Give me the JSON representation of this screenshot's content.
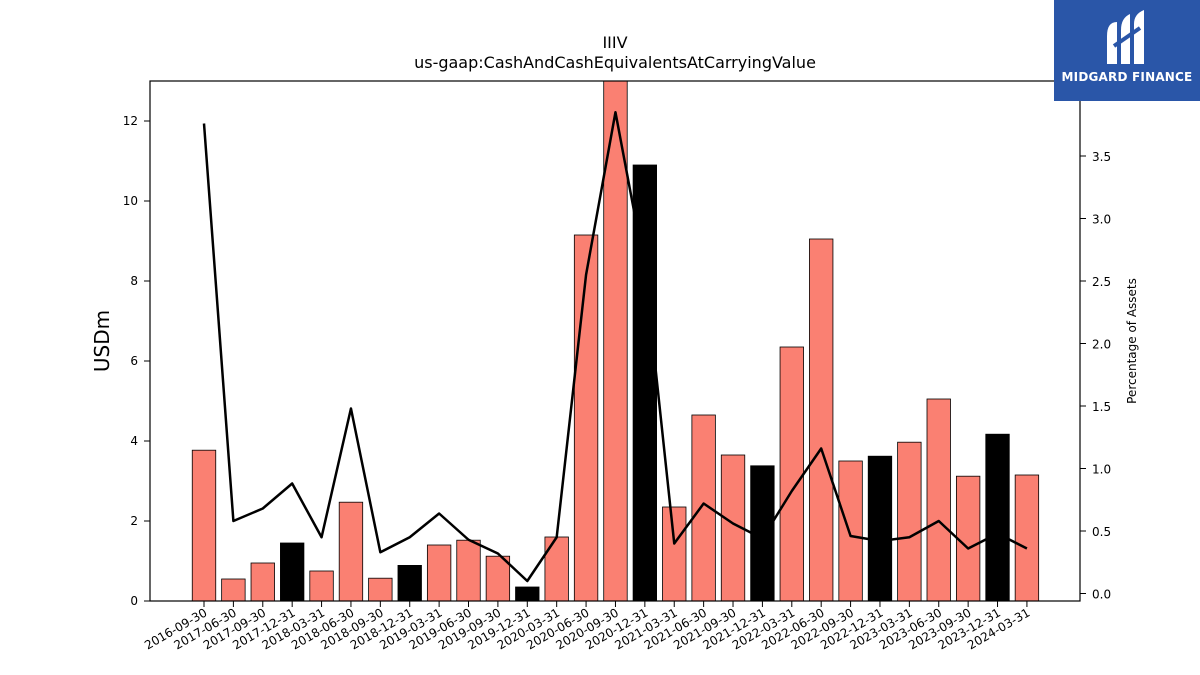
{
  "brand": {
    "name": "MIDGARD FINANCE",
    "logo_icon": "midgard-m-logo-icon",
    "background_color": "#2a56a8"
  },
  "chart_data": {
    "type": "bar",
    "title": "IIIV",
    "subtitle": "us-gaap:CashAndCashEquivalentsAtCarryingValue",
    "ylabel": "USDm",
    "y2label": "Percentage of Assets",
    "ylim": [
      0,
      13
    ],
    "y2lim": [
      -0.06,
      4.1
    ],
    "yticks": [
      0,
      2,
      4,
      6,
      8,
      10,
      12
    ],
    "y2ticks": [
      0.0,
      0.5,
      1.0,
      1.5,
      2.0,
      2.5,
      3.0,
      3.5
    ],
    "categories": [
      "2016-09-30",
      "2017-06-30",
      "2017-09-30",
      "2017-12-31",
      "2018-03-31",
      "2018-06-30",
      "2018-09-30",
      "2018-12-31",
      "2019-03-31",
      "2019-06-30",
      "2019-09-30",
      "2019-12-31",
      "2020-03-31",
      "2020-06-30",
      "2020-09-30",
      "2020-12-31",
      "2021-03-31",
      "2021-06-30",
      "2021-09-30",
      "2021-12-31",
      "2022-03-31",
      "2022-06-30",
      "2022-09-30",
      "2022-12-31",
      "2023-03-31",
      "2023-06-30",
      "2023-09-30",
      "2023-12-31",
      "2024-03-31"
    ],
    "series": [
      {
        "type": "bar",
        "values": [
          3.77,
          0.55,
          0.95,
          1.45,
          0.75,
          2.47,
          0.57,
          0.89,
          1.4,
          1.52,
          1.12,
          0.35,
          1.6,
          9.15,
          13.0,
          10.9,
          2.35,
          4.65,
          3.65,
          3.38,
          6.35,
          9.05,
          3.5,
          3.62,
          3.97,
          5.05,
          3.12,
          4.17,
          3.15
        ],
        "bar_colors": [
          "#fa8072",
          "#fa8072",
          "#fa8072",
          "#000000",
          "#fa8072",
          "#fa8072",
          "#fa8072",
          "#000000",
          "#fa8072",
          "#fa8072",
          "#fa8072",
          "#000000",
          "#fa8072",
          "#fa8072",
          "#fa8072",
          "#000000",
          "#fa8072",
          "#fa8072",
          "#fa8072",
          "#000000",
          "#fa8072",
          "#fa8072",
          "#fa8072",
          "#000000",
          "#fa8072",
          "#fa8072",
          "#fa8072",
          "#000000",
          "#fa8072"
        ]
      },
      {
        "type": "line",
        "axis": "right",
        "color": "#000000",
        "values": [
          3.76,
          0.58,
          0.68,
          0.88,
          0.45,
          1.48,
          0.33,
          0.45,
          0.64,
          0.43,
          0.32,
          0.1,
          0.45,
          2.55,
          3.85,
          2.6,
          0.4,
          0.72,
          0.56,
          0.44,
          0.82,
          1.16,
          0.46,
          0.42,
          0.45,
          0.58,
          0.36,
          0.48,
          0.36
        ]
      }
    ],
    "grid": false,
    "legend": "none"
  }
}
